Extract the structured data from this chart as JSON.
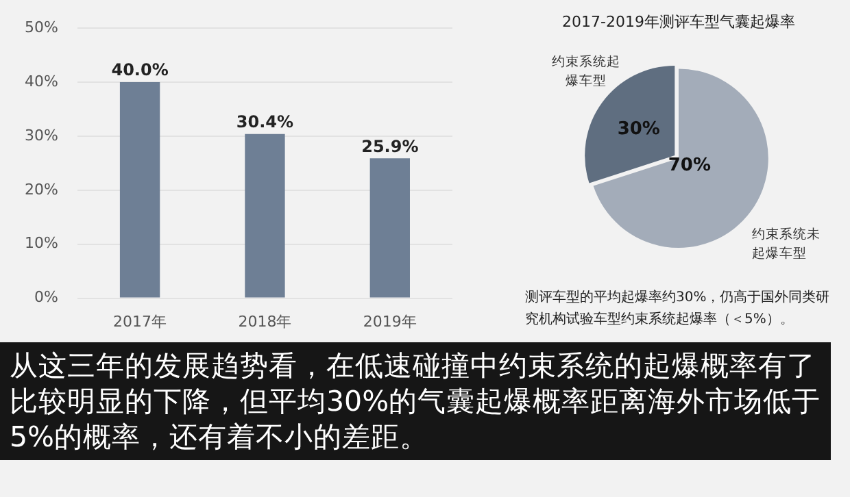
{
  "chart_data": [
    {
      "type": "bar",
      "categories": [
        "2017年",
        "2018年",
        "2019年"
      ],
      "values": [
        40.0,
        30.4,
        25.9
      ],
      "color": "#6e7f95",
      "value_labels": [
        "40.0%",
        "30.4%",
        "25.9%"
      ],
      "ylim": [
        0,
        50
      ],
      "yticks": [
        {
          "value": 0,
          "label": "0%"
        },
        {
          "value": 10,
          "label": "10%"
        },
        {
          "value": 20,
          "label": "20%"
        },
        {
          "value": 30,
          "label": "30%"
        },
        {
          "value": 40,
          "label": "40%"
        },
        {
          "value": 50,
          "label": "50%"
        }
      ],
      "grid": "y",
      "legend": false,
      "annotations": [
        "从这三年的发展趋势看，在低速碰撞中约束系统的起爆概率有了比较明显的下降，但平均30%的气囊起爆概率距离海外市场低于5%的概率，还有着不小的差距。"
      ]
    },
    {
      "type": "pie",
      "title": "2017-2019年测评车型气囊起爆率",
      "categories": [
        "约束系统起爆车型",
        "约束系统未起爆车型"
      ],
      "values": [
        30,
        70
      ],
      "colors": [
        "#5f6e80",
        "#a3acb9"
      ],
      "value_labels": [
        "30%",
        "70%"
      ],
      "legend": false,
      "annotations": [
        "测评车型的平均起爆率约30%，仍高于国外同类研究机构试验车型约束系统起爆率（＜5%）。"
      ]
    }
  ]
}
